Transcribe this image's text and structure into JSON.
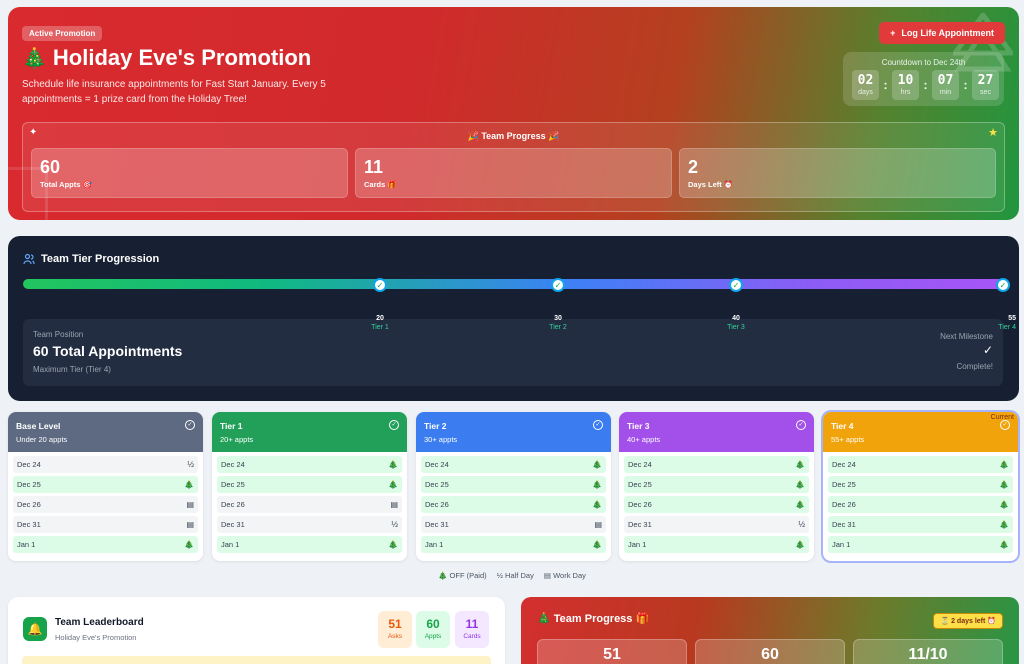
{
  "hero": {
    "badge": "Active Promotion",
    "title_icon": "🎄",
    "title": "Holiday Eve's Promotion",
    "subtitle": "Schedule life insurance appointments for Fast Start January. Every 5 appointments = 1 prize card from the Holiday Tree!",
    "log_button": "Log Life Appointment",
    "countdown": {
      "label": "Countdown to Dec 24th",
      "days": "02",
      "days_unit": "days",
      "hrs": "10",
      "hrs_unit": "hrs",
      "min": "07",
      "min_unit": "min",
      "sec": "27",
      "sec_unit": "sec"
    },
    "team_progress": {
      "title": "🎉 Team Progress 🎉",
      "stats": [
        {
          "value": "60",
          "label": "Total Appts 🎯"
        },
        {
          "value": "11",
          "label": "Cards 🎁"
        },
        {
          "value": "2",
          "label": "Days Left ⏰"
        }
      ]
    }
  },
  "tier_progression": {
    "title": "Team Tier Progression",
    "markers": [
      {
        "value": "20",
        "tier": "Tier 1"
      },
      {
        "value": "30",
        "tier": "Tier 2"
      },
      {
        "value": "40",
        "tier": "Tier 3"
      },
      {
        "value": "55",
        "tier": "Tier 4"
      }
    ],
    "position_label": "Team Position",
    "position_total": "60 Total Appointments",
    "position_tier": "Maximum Tier (Tier 4)",
    "next_label": "Next Milestone",
    "next_check": "✓",
    "next_status": "Complete!"
  },
  "tiers": [
    {
      "name": "Base Level",
      "sub": "Under 20 appts",
      "color": "#5d6a82",
      "current": false,
      "rows": [
        {
          "date": "Dec 24",
          "type": "half",
          "icon": "½"
        },
        {
          "date": "Dec 25",
          "type": "off",
          "icon": "🎄"
        },
        {
          "date": "Dec 26",
          "type": "work",
          "icon": "▤"
        },
        {
          "date": "Dec 31",
          "type": "work",
          "icon": "▤"
        },
        {
          "date": "Jan 1",
          "type": "off",
          "icon": "🎄"
        }
      ]
    },
    {
      "name": "Tier 1",
      "sub": "20+ appts",
      "color": "#22a05a",
      "current": false,
      "rows": [
        {
          "date": "Dec 24",
          "type": "off",
          "icon": "🎄"
        },
        {
          "date": "Dec 25",
          "type": "off",
          "icon": "🎄"
        },
        {
          "date": "Dec 26",
          "type": "work",
          "icon": "▤"
        },
        {
          "date": "Dec 31",
          "type": "half",
          "icon": "½"
        },
        {
          "date": "Jan 1",
          "type": "off",
          "icon": "🎄"
        }
      ]
    },
    {
      "name": "Tier 2",
      "sub": "30+ appts",
      "color": "#3b7cf0",
      "current": false,
      "rows": [
        {
          "date": "Dec 24",
          "type": "off",
          "icon": "🎄"
        },
        {
          "date": "Dec 25",
          "type": "off",
          "icon": "🎄"
        },
        {
          "date": "Dec 26",
          "type": "off",
          "icon": "🎄"
        },
        {
          "date": "Dec 31",
          "type": "work",
          "icon": "▤"
        },
        {
          "date": "Jan 1",
          "type": "off",
          "icon": "🎄"
        }
      ]
    },
    {
      "name": "Tier 3",
      "sub": "40+ appts",
      "color": "#a350ea",
      "current": false,
      "rows": [
        {
          "date": "Dec 24",
          "type": "off",
          "icon": "🎄"
        },
        {
          "date": "Dec 25",
          "type": "off",
          "icon": "🎄"
        },
        {
          "date": "Dec 26",
          "type": "off",
          "icon": "🎄"
        },
        {
          "date": "Dec 31",
          "type": "half",
          "icon": "½"
        },
        {
          "date": "Jan 1",
          "type": "off",
          "icon": "🎄"
        }
      ]
    },
    {
      "name": "Tier 4",
      "sub": "55+ appts",
      "color": "#f0a30a",
      "current": true,
      "current_label": "Current",
      "rows": [
        {
          "date": "Dec 24",
          "type": "off",
          "icon": "🎄"
        },
        {
          "date": "Dec 25",
          "type": "off",
          "icon": "🎄"
        },
        {
          "date": "Dec 26",
          "type": "off",
          "icon": "🎄"
        },
        {
          "date": "Dec 31",
          "type": "off",
          "icon": "🎄"
        },
        {
          "date": "Jan 1",
          "type": "off",
          "icon": "🎄"
        }
      ]
    }
  ],
  "legend": {
    "off": "🎄 OFF (Paid)",
    "half": "½ Half Day",
    "work": "▤ Work Day"
  },
  "leaderboard": {
    "title": "Team Leaderboard",
    "subtitle": "Holiday Eve's Promotion",
    "stats": [
      {
        "value": "51",
        "label": "Asks",
        "bg": "#ffedd5",
        "fg": "#ea580c"
      },
      {
        "value": "60",
        "label": "Appts",
        "bg": "#dcfce7",
        "fg": "#16a34a"
      },
      {
        "value": "11",
        "label": "Cards",
        "bg": "#f3e8ff",
        "fg": "#9333ea"
      }
    ]
  },
  "bottom_progress": {
    "title": "🎄 Team Progress 🎁",
    "badge": "⏳ 2 days left ⏰",
    "values": [
      "51",
      "60",
      "11/10"
    ]
  }
}
